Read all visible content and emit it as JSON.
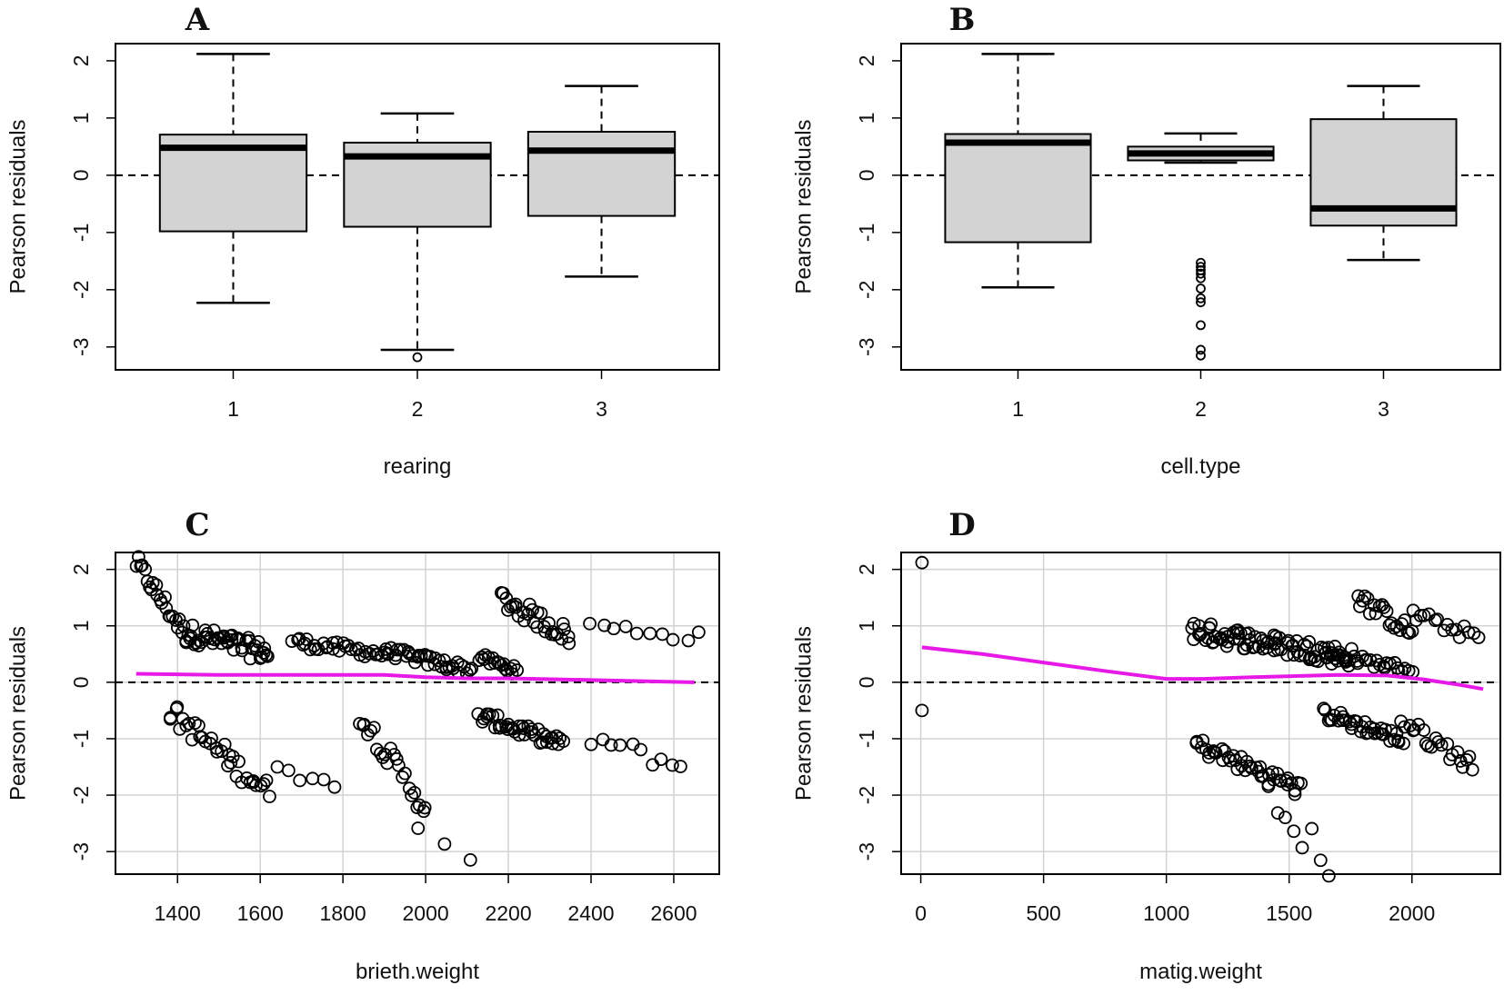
{
  "figure": {
    "panels": [
      "A",
      "B",
      "C",
      "D"
    ]
  },
  "chart_data": [
    {
      "panel": "A",
      "type": "boxplot",
      "xlabel": "rearing",
      "ylabel": "Pearson residuals",
      "categories": [
        "1",
        "2",
        "3"
      ],
      "ylim": [
        -3.4,
        2.3
      ],
      "yticks": [
        -3,
        -2,
        -1,
        0,
        1,
        2
      ],
      "reference_line_y": 0,
      "boxes": [
        {
          "category": "1",
          "whisker_low": -2.23,
          "q1": -0.98,
          "median": 0.48,
          "q3": 0.71,
          "whisker_high": 2.12,
          "outliers": []
        },
        {
          "category": "2",
          "whisker_low": -3.05,
          "q1": -0.9,
          "median": 0.33,
          "q3": 0.57,
          "whisker_high": 1.08,
          "outliers": [
            -3.18
          ]
        },
        {
          "category": "3",
          "whisker_low": -1.77,
          "q1": -0.71,
          "median": 0.43,
          "q3": 0.76,
          "whisker_high": 1.56,
          "outliers": []
        }
      ]
    },
    {
      "panel": "B",
      "type": "boxplot",
      "xlabel": "cell.type",
      "ylabel": "Pearson residuals",
      "categories": [
        "1",
        "2",
        "3"
      ],
      "ylim": [
        -3.4,
        2.3
      ],
      "yticks": [
        -3,
        -2,
        -1,
        0,
        1,
        2
      ],
      "reference_line_y": 0,
      "boxes": [
        {
          "category": "1",
          "whisker_low": -1.96,
          "q1": -1.17,
          "median": 0.57,
          "q3": 0.72,
          "whisker_high": 2.12,
          "outliers": []
        },
        {
          "category": "2",
          "whisker_low": 0.22,
          "q1": 0.26,
          "median": 0.38,
          "q3": 0.5,
          "whisker_high": 0.73,
          "outliers": [
            -1.53,
            -1.6,
            -1.66,
            -1.72,
            -1.8,
            -1.98,
            -2.15,
            -2.22,
            -2.62,
            -3.05,
            -3.15
          ]
        },
        {
          "category": "3",
          "whisker_low": -1.48,
          "q1": -0.88,
          "median": -0.58,
          "q3": 0.98,
          "whisker_high": 1.56,
          "outliers": []
        }
      ]
    },
    {
      "panel": "C",
      "type": "scatter",
      "xlabel": "brieth.weight",
      "ylabel": "Pearson residuals",
      "xlim": [
        1250,
        2710
      ],
      "ylim": [
        -3.4,
        2.3
      ],
      "xticks": [
        1400,
        1600,
        1800,
        2000,
        2200,
        2400,
        2600
      ],
      "yticks": [
        -3,
        -2,
        -1,
        0,
        1,
        2
      ],
      "grid": true,
      "reference_line_y": 0,
      "smooth": {
        "color": "#e619e6",
        "x": [
          1300,
          1500,
          1700,
          1900,
          2000,
          2100,
          2200,
          2400,
          2650
        ],
        "y": [
          0.15,
          0.13,
          0.13,
          0.13,
          0.09,
          0.07,
          0.07,
          0.04,
          0.0
        ]
      },
      "point_groups": [
        {
          "x": [
            1300,
            1420
          ],
          "y": [
            2.12,
            0.83
          ],
          "n": 24,
          "jitter_y": 0.16
        },
        {
          "x": [
            1420,
            1620
          ],
          "y": [
            0.88,
            0.52
          ],
          "n": 48,
          "jitter_y": 0.18
        },
        {
          "x": [
            1680,
            1900
          ],
          "y": [
            0.72,
            0.5
          ],
          "n": 32,
          "jitter_y": 0.1
        },
        {
          "x": [
            1900,
            2110
          ],
          "y": [
            0.55,
            0.22
          ],
          "n": 38,
          "jitter_y": 0.1
        },
        {
          "x": [
            2130,
            2220
          ],
          "y": [
            0.45,
            0.2
          ],
          "n": 18,
          "jitter_y": 0.08
        },
        {
          "x": [
            2180,
            2350
          ],
          "y": [
            1.48,
            0.82
          ],
          "n": 30,
          "jitter_y": 0.18
        },
        {
          "x": [
            2400,
            2660
          ],
          "y": [
            1.0,
            0.8
          ],
          "n": 10,
          "jitter_y": 0.1
        },
        {
          "x": [
            1380,
            1620
          ],
          "y": [
            -0.5,
            -1.95
          ],
          "n": 36,
          "jitter_y": 0.2
        },
        {
          "x": [
            1640,
            1780
          ],
          "y": [
            -1.38,
            -1.93
          ],
          "n": 6,
          "jitter_y": 0.15
        },
        {
          "x": [
            1840,
            2000
          ],
          "y": [
            -0.55,
            -2.25
          ],
          "n": 24,
          "jitter_y": 0.2
        },
        {
          "x": [
            1980,
            2110
          ],
          "y": [
            -2.62,
            -3.18
          ],
          "n": 3,
          "jitter_y": 0.05
        },
        {
          "x": [
            2130,
            2330
          ],
          "y": [
            -0.6,
            -1.1
          ],
          "n": 40,
          "jitter_y": 0.12
        },
        {
          "x": [
            2400,
            2620
          ],
          "y": [
            -1.0,
            -1.5
          ],
          "n": 10,
          "jitter_y": 0.15
        }
      ]
    },
    {
      "panel": "D",
      "type": "scatter",
      "xlabel": "matig.weight",
      "ylabel": "Pearson residuals",
      "xlim": [
        -80,
        2360
      ],
      "ylim": [
        -3.4,
        2.3
      ],
      "xticks": [
        0,
        500,
        1000,
        1500,
        2000
      ],
      "yticks": [
        -3,
        -2,
        -1,
        0,
        1,
        2
      ],
      "grid": true,
      "reference_line_y": 0,
      "smooth": {
        "color": "#e619e6",
        "x": [
          5,
          250,
          500,
          750,
          1000,
          1150,
          1350,
          1700,
          1900,
          2050,
          2200,
          2290
        ],
        "y": [
          0.62,
          0.5,
          0.35,
          0.2,
          0.06,
          0.06,
          0.09,
          0.13,
          0.12,
          0.05,
          -0.05,
          -0.12
        ]
      },
      "point_groups": [
        {
          "x": [
            5,
            5
          ],
          "y": [
            2.12,
            2.12
          ],
          "n": 1,
          "jitter_y": 0.0
        },
        {
          "x": [
            5,
            5
          ],
          "y": [
            -0.5,
            -0.5
          ],
          "n": 1,
          "jitter_y": 0.0
        },
        {
          "x": [
            1100,
            1750
          ],
          "y": [
            0.92,
            0.45
          ],
          "n": 90,
          "jitter_y": 0.18
        },
        {
          "x": [
            1650,
            2000
          ],
          "y": [
            0.5,
            0.22
          ],
          "n": 30,
          "jitter_y": 0.08
        },
        {
          "x": [
            1780,
            2000
          ],
          "y": [
            1.5,
            0.88
          ],
          "n": 22,
          "jitter_y": 0.15
        },
        {
          "x": [
            2000,
            2270
          ],
          "y": [
            1.2,
            0.8
          ],
          "n": 16,
          "jitter_y": 0.12
        },
        {
          "x": [
            1120,
            1550
          ],
          "y": [
            -1.1,
            -1.9
          ],
          "n": 44,
          "jitter_y": 0.15
        },
        {
          "x": [
            1420,
            1660
          ],
          "y": [
            -2.1,
            -3.18
          ],
          "n": 8,
          "jitter_y": 0.3
        },
        {
          "x": [
            1640,
            1960
          ],
          "y": [
            -0.55,
            -1.02
          ],
          "n": 36,
          "jitter_y": 0.12
        },
        {
          "x": [
            1960,
            2250
          ],
          "y": [
            -0.7,
            -1.48
          ],
          "n": 22,
          "jitter_y": 0.15
        }
      ]
    }
  ]
}
